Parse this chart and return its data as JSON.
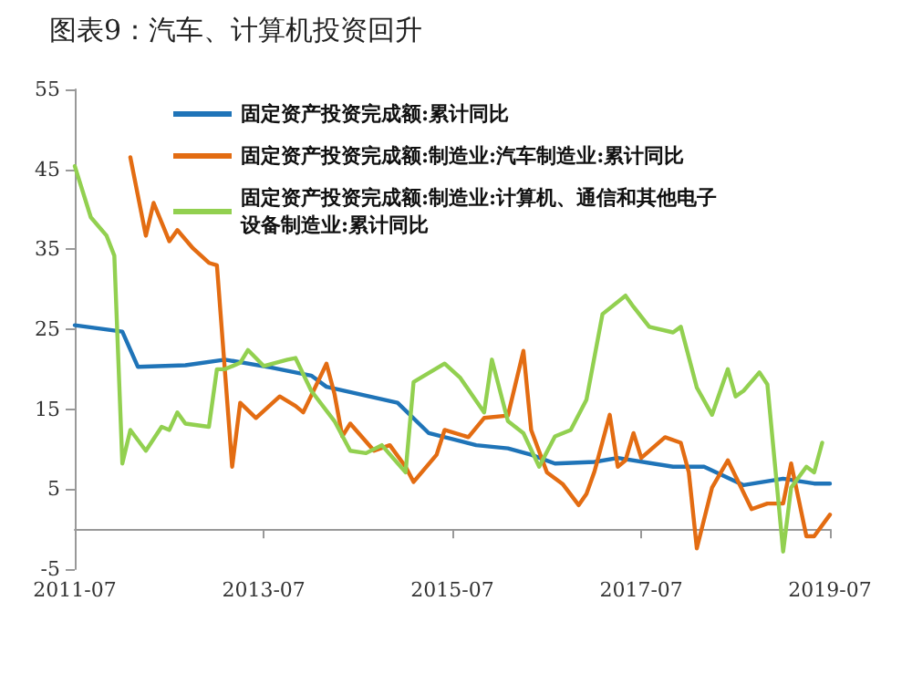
{
  "chart_data": {
    "type": "line",
    "title": "图表9：汽车、计算机投资回升",
    "series": [
      {
        "name": "固定资产投资完成额:累计同比",
        "color": "#1f74b8",
        "x": [
          "2011-07",
          "2012-01",
          "2012-03",
          "2012-09",
          "2013-02",
          "2013-08",
          "2014-01",
          "2014-03",
          "2014-12",
          "2015-04",
          "2015-10",
          "2016-02",
          "2016-05",
          "2016-08",
          "2017-01",
          "2017-04",
          "2017-11",
          "2018-03",
          "2018-08",
          "2019-01",
          "2019-05",
          "2019-07"
        ],
        "values": [
          25.5,
          24.7,
          20.3,
          20.5,
          21.2,
          20.2,
          19.2,
          17.8,
          15.8,
          12,
          10.5,
          10.1,
          9.3,
          8.2,
          8.4,
          8.9,
          7.8,
          7.8,
          5.5,
          6.3,
          5.7,
          5.7
        ]
      },
      {
        "name": "固定资产投资完成额:制造业:汽车制造业:累计同比",
        "color": "#e36c12",
        "x": [
          "2012-02",
          "2012-04",
          "2012-05",
          "2012-07",
          "2012-08",
          "2012-10",
          "2012-12",
          "2013-01",
          "2013-03",
          "2013-04",
          "2013-06",
          "2013-09",
          "2013-11",
          "2013-12",
          "2014-03",
          "2014-04",
          "2014-05",
          "2014-06",
          "2014-09",
          "2014-11",
          "2015-01",
          "2015-02",
          "2015-05",
          "2015-06",
          "2015-09",
          "2015-11",
          "2016-02",
          "2016-04",
          "2016-05",
          "2016-07",
          "2016-09",
          "2016-11",
          "2016-12",
          "2017-01",
          "2017-03",
          "2017-04",
          "2017-05",
          "2017-06",
          "2017-07",
          "2017-10",
          "2017-12",
          "2018-01",
          "2018-02",
          "2018-04",
          "2018-06",
          "2018-09",
          "2018-11",
          "2019-01",
          "2019-02",
          "2019-04",
          "2019-05",
          "2019-07"
        ],
        "values": [
          46.5,
          36.7,
          40.8,
          36,
          37.4,
          35.1,
          33.3,
          33,
          7.8,
          15.8,
          13.9,
          16.6,
          15.4,
          14.6,
          20.7,
          16.9,
          11.6,
          13.2,
          9.8,
          10.5,
          7.8,
          5.9,
          9.3,
          12.4,
          11.5,
          13.9,
          14.2,
          22.3,
          12.4,
          7.1,
          5.6,
          3,
          4.4,
          7.2,
          14.3,
          7.8,
          8.6,
          12,
          8.9,
          11.5,
          10.8,
          7.1,
          -2.4,
          5.2,
          8.6,
          2.5,
          3.2,
          3.2,
          8.2,
          -0.9,
          -0.9,
          1.8
        ]
      },
      {
        "name": "固定资产投资完成额:制造业:计算机、通信和其他电子设备制造业:累计同比",
        "color": "#92d050",
        "x": [
          "2011-07",
          "2011-09",
          "2011-11",
          "2011-12",
          "2012-01",
          "2012-02",
          "2012-04",
          "2012-06",
          "2012-07",
          "2012-08",
          "2012-09",
          "2012-12",
          "2013-01",
          "2013-02",
          "2013-04",
          "2013-05",
          "2013-07",
          "2013-10",
          "2013-11",
          "2014-01",
          "2014-04",
          "2014-06",
          "2014-08",
          "2014-10",
          "2015-01",
          "2015-02",
          "2015-06",
          "2015-08",
          "2015-11",
          "2015-12",
          "2016-02",
          "2016-04",
          "2016-06",
          "2016-08",
          "2016-10",
          "2016-12",
          "2017-02",
          "2017-05",
          "2017-06",
          "2017-08",
          "2017-11",
          "2017-12",
          "2018-02",
          "2018-04",
          "2018-06",
          "2018-07",
          "2018-08",
          "2018-10",
          "2018-11",
          "2019-01",
          "2019-02",
          "2019-04",
          "2019-05",
          "2019-06"
        ],
        "values": [
          45.4,
          39,
          36.7,
          34.2,
          8.2,
          12.4,
          9.8,
          12.8,
          12.4,
          14.6,
          13.2,
          12.8,
          20,
          20,
          20.8,
          22.4,
          20.4,
          21.2,
          21.4,
          17.3,
          13.5,
          9.8,
          9.5,
          10.5,
          7.1,
          18.4,
          20.7,
          18.9,
          14.6,
          21.2,
          13.5,
          12,
          7.8,
          11.6,
          12.4,
          16.2,
          26.9,
          29.2,
          27.8,
          25.3,
          24.6,
          25.3,
          17.7,
          14.3,
          20,
          16.6,
          17.3,
          19.6,
          18.1,
          -2.8,
          5.2,
          7.8,
          7.1,
          10.8
        ]
      }
    ],
    "xlim": [
      "2011-07",
      "2019-07"
    ],
    "xticks": [
      "2011-07",
      "2013-07",
      "2015-07",
      "2017-07",
      "2019-07"
    ],
    "ylim": [
      -5,
      55
    ],
    "yticks": [
      -5,
      5,
      15,
      25,
      35,
      45,
      55
    ],
    "grid": false,
    "legend": "top left",
    "marker": "none",
    "line_style": "solid"
  }
}
